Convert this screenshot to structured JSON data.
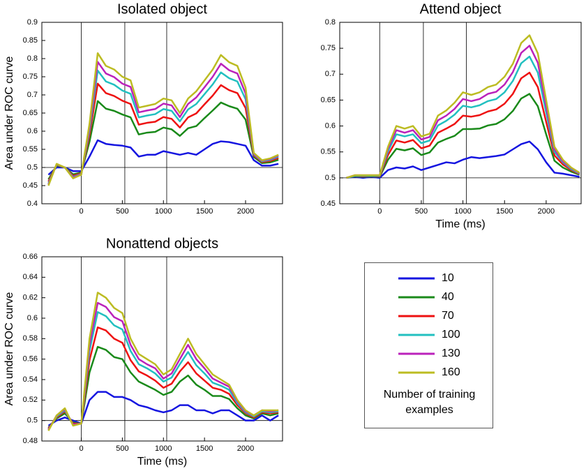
{
  "legend_title": "Number of training examples",
  "chart_data": [
    {
      "type": "line",
      "title": "Isolated object",
      "ylabel": "Area under ROC curve",
      "xlim": [
        -480,
        2450
      ],
      "ylim": [
        0.4,
        0.9
      ],
      "xticks": [
        0,
        500,
        1000,
        1500,
        2000
      ],
      "yticks": [
        0.4,
        0.45,
        0.5,
        0.55,
        0.6,
        0.65,
        0.7,
        0.75,
        0.8,
        0.85,
        0.9
      ],
      "vlines": [
        0,
        530,
        1040
      ],
      "hline": 0.5,
      "x": [
        -400,
        -300,
        -200,
        -100,
        0,
        100,
        200,
        300,
        400,
        500,
        600,
        700,
        800,
        900,
        1000,
        1100,
        1200,
        1300,
        1400,
        1500,
        1600,
        1700,
        1800,
        1900,
        2000,
        2100,
        2200,
        2300,
        2400
      ],
      "series": [
        {
          "name": "10",
          "color": "#1515e0",
          "values": [
            0.48,
            0.5,
            0.5,
            0.49,
            0.49,
            0.53,
            0.575,
            0.565,
            0.562,
            0.56,
            0.555,
            0.53,
            0.535,
            0.535,
            0.545,
            0.54,
            0.535,
            0.54,
            0.535,
            0.55,
            0.565,
            0.572,
            0.57,
            0.565,
            0.56,
            0.52,
            0.505,
            0.505,
            0.51
          ]
        },
        {
          "name": "40",
          "color": "#1a8a1a",
          "values": [
            0.467,
            0.505,
            0.5,
            0.481,
            0.486,
            0.571,
            0.683,
            0.662,
            0.656,
            0.646,
            0.638,
            0.591,
            0.596,
            0.598,
            0.61,
            0.605,
            0.587,
            0.608,
            0.614,
            0.636,
            0.657,
            0.679,
            0.669,
            0.662,
            0.632,
            0.529,
            0.512,
            0.514,
            0.521
          ]
        },
        {
          "name": "70",
          "color": "#ee1111",
          "values": [
            0.461,
            0.507,
            0.5,
            0.477,
            0.484,
            0.589,
            0.731,
            0.705,
            0.697,
            0.684,
            0.675,
            0.618,
            0.623,
            0.626,
            0.639,
            0.634,
            0.61,
            0.638,
            0.649,
            0.674,
            0.698,
            0.727,
            0.713,
            0.705,
            0.664,
            0.533,
            0.515,
            0.518,
            0.526
          ]
        },
        {
          "name": "100",
          "color": "#22c0c0",
          "values": [
            0.456,
            0.508,
            0.5,
            0.474,
            0.482,
            0.602,
            0.767,
            0.737,
            0.728,
            0.712,
            0.703,
            0.638,
            0.643,
            0.647,
            0.661,
            0.656,
            0.627,
            0.66,
            0.675,
            0.702,
            0.729,
            0.762,
            0.746,
            0.737,
            0.688,
            0.536,
            0.517,
            0.521,
            0.53
          ]
        },
        {
          "name": "130",
          "color": "#bb22bb",
          "values": [
            0.453,
            0.509,
            0.5,
            0.472,
            0.481,
            0.611,
            0.791,
            0.759,
            0.749,
            0.731,
            0.722,
            0.652,
            0.657,
            0.661,
            0.676,
            0.671,
            0.639,
            0.675,
            0.693,
            0.721,
            0.75,
            0.786,
            0.768,
            0.759,
            0.704,
            0.538,
            0.519,
            0.523,
            0.533
          ]
        },
        {
          "name": "160",
          "color": "#bcbc22",
          "values": [
            0.45,
            0.51,
            0.5,
            0.47,
            0.48,
            0.62,
            0.815,
            0.78,
            0.77,
            0.75,
            0.74,
            0.665,
            0.67,
            0.675,
            0.69,
            0.685,
            0.65,
            0.69,
            0.71,
            0.74,
            0.77,
            0.81,
            0.79,
            0.78,
            0.72,
            0.54,
            0.52,
            0.525,
            0.535
          ]
        }
      ]
    },
    {
      "type": "line",
      "title": "Attend  object",
      "xlabel": "Time (ms)",
      "xlim": [
        -480,
        2420
      ],
      "ylim": [
        0.45,
        0.8
      ],
      "xticks": [
        0,
        500,
        1000,
        1500,
        2000
      ],
      "yticks": [
        0.45,
        0.5,
        0.55,
        0.6,
        0.65,
        0.7,
        0.75,
        0.8
      ],
      "vlines": [
        0,
        525,
        1042
      ],
      "hline": 0.5,
      "x": [
        -400,
        -300,
        -200,
        -100,
        0,
        100,
        200,
        300,
        400,
        500,
        600,
        700,
        800,
        900,
        1000,
        1100,
        1200,
        1300,
        1400,
        1500,
        1600,
        1700,
        1800,
        1900,
        2000,
        2100,
        2200,
        2300,
        2400
      ],
      "series": [
        {
          "color": "#1515e0",
          "values": [
            0.5,
            0.502,
            0.5,
            0.502,
            0.5,
            0.515,
            0.52,
            0.518,
            0.522,
            0.515,
            0.52,
            0.525,
            0.53,
            0.528,
            0.535,
            0.54,
            0.538,
            0.54,
            0.542,
            0.545,
            0.555,
            0.565,
            0.57,
            0.555,
            0.53,
            0.51,
            0.508,
            0.505,
            0.502
          ]
        },
        {
          "color": "#1a8a1a",
          "values": [
            0.5,
            0.503,
            0.502,
            0.503,
            0.502,
            0.535,
            0.556,
            0.553,
            0.557,
            0.544,
            0.549,
            0.568,
            0.575,
            0.581,
            0.594,
            0.594,
            0.595,
            0.601,
            0.604,
            0.613,
            0.629,
            0.653,
            0.662,
            0.638,
            0.584,
            0.533,
            0.52,
            0.512,
            0.506
          ]
        },
        {
          "color": "#ee1111",
          "values": [
            0.5,
            0.504,
            0.503,
            0.504,
            0.503,
            0.544,
            0.572,
            0.568,
            0.573,
            0.557,
            0.562,
            0.587,
            0.595,
            0.604,
            0.62,
            0.618,
            0.621,
            0.628,
            0.632,
            0.643,
            0.662,
            0.692,
            0.703,
            0.675,
            0.608,
            0.543,
            0.526,
            0.515,
            0.507
          ]
        },
        {
          "color": "#22c0c0",
          "values": [
            0.5,
            0.504,
            0.504,
            0.504,
            0.504,
            0.551,
            0.584,
            0.58,
            0.584,
            0.567,
            0.572,
            0.601,
            0.61,
            0.622,
            0.639,
            0.636,
            0.64,
            0.648,
            0.652,
            0.665,
            0.687,
            0.721,
            0.734,
            0.703,
            0.626,
            0.55,
            0.53,
            0.517,
            0.508
          ]
        },
        {
          "color": "#bb22bb",
          "values": [
            0.5,
            0.505,
            0.505,
            0.505,
            0.505,
            0.556,
            0.592,
            0.587,
            0.592,
            0.574,
            0.579,
            0.611,
            0.62,
            0.633,
            0.652,
            0.648,
            0.652,
            0.662,
            0.666,
            0.68,
            0.704,
            0.741,
            0.755,
            0.722,
            0.638,
            0.555,
            0.532,
            0.519,
            0.509
          ]
        },
        {
          "color": "#bcbc22",
          "values": [
            0.5,
            0.505,
            0.505,
            0.505,
            0.505,
            0.56,
            0.6,
            0.595,
            0.6,
            0.58,
            0.585,
            0.62,
            0.63,
            0.645,
            0.665,
            0.66,
            0.665,
            0.675,
            0.68,
            0.695,
            0.72,
            0.76,
            0.775,
            0.74,
            0.65,
            0.56,
            0.535,
            0.52,
            0.51
          ]
        }
      ]
    },
    {
      "type": "line",
      "title": "Nonattend objects",
      "xlabel": "Time (ms)",
      "ylabel": "Area under ROC curve",
      "xlim": [
        -480,
        2450
      ],
      "ylim": [
        0.48,
        0.66
      ],
      "xticks": [
        0,
        500,
        1000,
        1500,
        2000
      ],
      "yticks": [
        0.48,
        0.5,
        0.52,
        0.54,
        0.56,
        0.58,
        0.6,
        0.62,
        0.64,
        0.66
      ],
      "vlines": [
        0,
        530,
        1040
      ],
      "hline": 0.5,
      "x": [
        -400,
        -300,
        -200,
        -100,
        0,
        100,
        200,
        300,
        400,
        500,
        600,
        700,
        800,
        900,
        1000,
        1100,
        1200,
        1300,
        1400,
        1500,
        1600,
        1700,
        1800,
        1900,
        2000,
        2100,
        2200,
        2300,
        2400
      ],
      "series": [
        {
          "color": "#1515e0",
          "values": [
            0.495,
            0.5,
            0.503,
            0.5,
            0.497,
            0.52,
            0.528,
            0.528,
            0.523,
            0.523,
            0.52,
            0.515,
            0.513,
            0.51,
            0.508,
            0.51,
            0.515,
            0.515,
            0.51,
            0.51,
            0.507,
            0.51,
            0.51,
            0.505,
            0.5,
            0.5,
            0.505,
            0.5,
            0.505
          ]
        },
        {
          "color": "#1a8a1a",
          "values": [
            0.493,
            0.502,
            0.507,
            0.498,
            0.497,
            0.547,
            0.572,
            0.569,
            0.562,
            0.56,
            0.547,
            0.538,
            0.534,
            0.53,
            0.525,
            0.528,
            0.538,
            0.544,
            0.535,
            0.53,
            0.524,
            0.524,
            0.521,
            0.512,
            0.505,
            0.502,
            0.507,
            0.505,
            0.507
          ]
        },
        {
          "color": "#ee1111",
          "values": [
            0.492,
            0.503,
            0.509,
            0.497,
            0.497,
            0.559,
            0.591,
            0.588,
            0.58,
            0.576,
            0.559,
            0.548,
            0.544,
            0.539,
            0.532,
            0.536,
            0.548,
            0.557,
            0.546,
            0.539,
            0.532,
            0.53,
            0.526,
            0.515,
            0.507,
            0.503,
            0.508,
            0.507,
            0.508
          ]
        },
        {
          "color": "#22c0c0",
          "values": [
            0.491,
            0.504,
            0.51,
            0.496,
            0.497,
            0.568,
            0.606,
            0.602,
            0.593,
            0.589,
            0.568,
            0.555,
            0.551,
            0.546,
            0.538,
            0.542,
            0.555,
            0.567,
            0.554,
            0.546,
            0.537,
            0.534,
            0.53,
            0.517,
            0.508,
            0.504,
            0.509,
            0.508,
            0.509
          ]
        },
        {
          "color": "#bb22bb",
          "values": [
            0.491,
            0.505,
            0.511,
            0.496,
            0.497,
            0.574,
            0.615,
            0.611,
            0.601,
            0.597,
            0.574,
            0.56,
            0.555,
            0.551,
            0.541,
            0.546,
            0.56,
            0.574,
            0.56,
            0.551,
            0.541,
            0.537,
            0.533,
            0.519,
            0.509,
            0.505,
            0.51,
            0.509,
            0.51
          ]
        },
        {
          "color": "#bcbc22",
          "values": [
            0.49,
            0.505,
            0.512,
            0.495,
            0.497,
            0.58,
            0.625,
            0.62,
            0.61,
            0.605,
            0.58,
            0.565,
            0.56,
            0.555,
            0.545,
            0.55,
            0.565,
            0.58,
            0.565,
            0.555,
            0.545,
            0.54,
            0.535,
            0.52,
            0.51,
            0.505,
            0.51,
            0.51,
            0.51
          ]
        }
      ]
    }
  ]
}
